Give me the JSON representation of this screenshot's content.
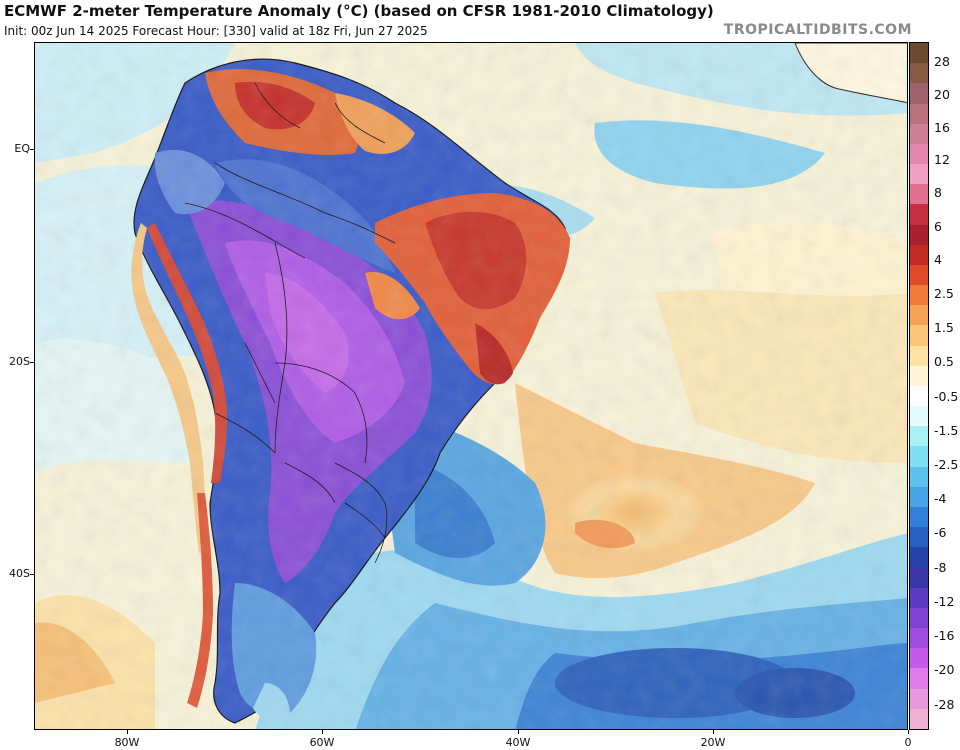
{
  "title": "ECMWF 2-meter Temperature Anomaly (°C) (based on CFSR 1981-2010 Climatology)",
  "subtitle": "Init: 00z Jun 14 2025   Forecast Hour: [330]   valid at 18z Fri, Jun 27 2025",
  "brand": "TROPICALTIDBITS.COM",
  "latitude_labels": [
    "EQ",
    "20S",
    "40S"
  ],
  "longitude_labels": [
    "80W",
    "60W",
    "40W",
    "20W",
    "0"
  ],
  "colorbar": {
    "labels": [
      "28",
      "20",
      "16",
      "12",
      "8",
      "6",
      "4",
      "2.5",
      "1.5",
      "0.5",
      "-0.5",
      "-1.5",
      "-2.5",
      "-4",
      "-6",
      "-8",
      "-12",
      "-16",
      "-20",
      "-28"
    ],
    "colors": [
      "#6b4a2e",
      "#8a5a44",
      "#a0626a",
      "#b8707f",
      "#cc7f95",
      "#e486ad",
      "#f0a0c0",
      "#e07090",
      "#c43040",
      "#a82030",
      "#c02a22",
      "#e04a2a",
      "#f07a3a",
      "#f6a35a",
      "#fbc57c",
      "#fde3a3",
      "#fff6d8",
      "#ffffff",
      "#e6fbff",
      "#a9f0f5",
      "#80dff0",
      "#5ec2ec",
      "#47a3e6",
      "#3480d8",
      "#2a60c2",
      "#2444a8",
      "#3a36a8",
      "#5b3cc0",
      "#7d44d2",
      "#a04ee0",
      "#c65ae8",
      "#e07ce8",
      "#e89ae0",
      "#efb2d4"
    ]
  }
}
